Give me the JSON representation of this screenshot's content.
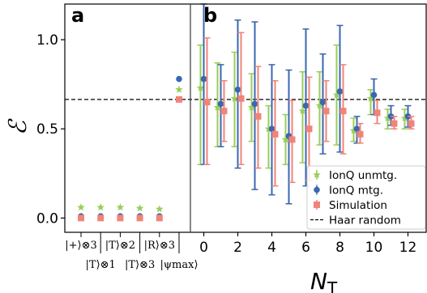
{
  "chart_data": {
    "type": "scatter",
    "ylabel": "ℰ",
    "xlabel": "N",
    "xlabel_sub": "T",
    "ylim": [
      -0.08,
      1.2
    ],
    "yticks": [
      0.0,
      0.5,
      1.0
    ],
    "ytick_labels": [
      "0.0",
      "0.5",
      "1.0"
    ],
    "panels": {
      "a": {
        "label": "a",
        "categories": [
          "|+⟩⊗3",
          "|T⟩⊗1",
          "|T⟩⊗2",
          "|T⟩⊗3",
          "|R⟩⊗3",
          "|ψmax⟩"
        ],
        "category_rows": [
          0,
          1,
          0,
          1,
          0,
          1
        ],
        "positions": [
          0,
          1,
          2,
          3,
          4,
          5
        ]
      },
      "b": {
        "label": "b",
        "xlim": [
          -0.8,
          12.3
        ],
        "xticks": [
          0,
          2,
          4,
          6,
          8,
          10,
          12
        ],
        "xtick_labels": [
          "0",
          "2",
          "4",
          "6",
          "8",
          "10",
          "12"
        ]
      }
    },
    "reference_line": {
      "name": "Haar random",
      "y": 0.665
    },
    "legend": {
      "position": "lower-right",
      "entries": [
        "IonQ unmtg.",
        "IonQ mtg.",
        "Simulation",
        "Haar random"
      ]
    },
    "series": [
      {
        "name": "IonQ unmtg.",
        "color": "#9acd5a",
        "marker": "star",
        "panel_a": [
          {
            "x": 0,
            "y": 0.06
          },
          {
            "x": 1,
            "y": 0.06
          },
          {
            "x": 2,
            "y": 0.06
          },
          {
            "x": 3,
            "y": 0.055
          },
          {
            "x": 4,
            "y": 0.05
          },
          {
            "x": 5,
            "y": 0.72
          }
        ],
        "panel_b": [
          {
            "x": 0,
            "y": 0.73,
            "lo": 0.3,
            "hi": 0.97
          },
          {
            "x": 1,
            "y": 0.62,
            "lo": 0.4,
            "hi": 0.87
          },
          {
            "x": 2,
            "y": 0.67,
            "lo": 0.4,
            "hi": 0.93
          },
          {
            "x": 3,
            "y": 0.62,
            "lo": 0.43,
            "hi": 0.81
          },
          {
            "x": 4,
            "y": 0.5,
            "lo": 0.28,
            "hi": 0.63
          },
          {
            "x": 5,
            "y": 0.44,
            "lo": 0.3,
            "hi": 0.58
          },
          {
            "x": 6,
            "y": 0.6,
            "lo": 0.31,
            "hi": 0.82
          },
          {
            "x": 7,
            "y": 0.63,
            "lo": 0.41,
            "hi": 0.82
          },
          {
            "x": 8,
            "y": 0.69,
            "lo": 0.41,
            "hi": 0.97
          },
          {
            "x": 9,
            "y": 0.49,
            "lo": 0.43,
            "hi": 0.56
          },
          {
            "x": 10,
            "y": 0.67,
            "lo": 0.58,
            "hi": 0.72
          },
          {
            "x": 11,
            "y": 0.56,
            "lo": 0.5,
            "hi": 0.61
          },
          {
            "x": 12,
            "y": 0.56,
            "lo": 0.5,
            "hi": 0.61
          }
        ]
      },
      {
        "name": "IonQ mtg.",
        "color": "#3a67b0",
        "marker": "circle",
        "panel_a": [
          {
            "x": 0,
            "y": 0.01
          },
          {
            "x": 1,
            "y": 0.01
          },
          {
            "x": 2,
            "y": 0.01
          },
          {
            "x": 3,
            "y": 0.01
          },
          {
            "x": 4,
            "y": 0.01
          },
          {
            "x": 5,
            "y": 0.78
          }
        ],
        "panel_b": [
          {
            "x": 0,
            "y": 0.78,
            "lo": 0.3,
            "hi": 1.2
          },
          {
            "x": 1,
            "y": 0.64,
            "lo": 0.4,
            "hi": 0.86
          },
          {
            "x": 2,
            "y": 0.72,
            "lo": 0.28,
            "hi": 1.11
          },
          {
            "x": 3,
            "y": 0.64,
            "lo": 0.16,
            "hi": 1.1
          },
          {
            "x": 4,
            "y": 0.5,
            "lo": 0.13,
            "hi": 0.86
          },
          {
            "x": 5,
            "y": 0.46,
            "lo": 0.08,
            "hi": 0.83
          },
          {
            "x": 6,
            "y": 0.63,
            "lo": 0.18,
            "hi": 1.06
          },
          {
            "x": 7,
            "y": 0.65,
            "lo": 0.36,
            "hi": 0.92
          },
          {
            "x": 8,
            "y": 0.71,
            "lo": 0.37,
            "hi": 1.08
          },
          {
            "x": 9,
            "y": 0.5,
            "lo": 0.42,
            "hi": 0.57
          },
          {
            "x": 10,
            "y": 0.69,
            "lo": 0.58,
            "hi": 0.78
          },
          {
            "x": 11,
            "y": 0.57,
            "lo": 0.52,
            "hi": 0.63
          },
          {
            "x": 12,
            "y": 0.57,
            "lo": 0.51,
            "hi": 0.63
          }
        ]
      },
      {
        "name": "Simulation",
        "color": "#f08478",
        "marker": "square",
        "panel_a": [
          {
            "x": 0,
            "y": 0.0
          },
          {
            "x": 1,
            "y": 0.0
          },
          {
            "x": 2,
            "y": 0.0
          },
          {
            "x": 3,
            "y": 0.0
          },
          {
            "x": 4,
            "y": 0.0
          },
          {
            "x": 5,
            "y": 0.665
          }
        ],
        "panel_b": [
          {
            "x": 0,
            "y": 0.65,
            "lo": 0.3,
            "hi": 1.01
          },
          {
            "x": 1,
            "y": 0.6,
            "lo": 0.43,
            "hi": 0.77
          },
          {
            "x": 2,
            "y": 0.67,
            "lo": 0.3,
            "hi": 1.04
          },
          {
            "x": 3,
            "y": 0.57,
            "lo": 0.28,
            "hi": 0.85
          },
          {
            "x": 4,
            "y": 0.47,
            "lo": 0.18,
            "hi": 0.77
          },
          {
            "x": 5,
            "y": 0.44,
            "lo": 0.2,
            "hi": 0.66
          },
          {
            "x": 6,
            "y": 0.5,
            "lo": 0.21,
            "hi": 0.79
          },
          {
            "x": 7,
            "y": 0.6,
            "lo": 0.43,
            "hi": 0.77
          },
          {
            "x": 8,
            "y": 0.6,
            "lo": 0.36,
            "hi": 0.86
          },
          {
            "x": 9,
            "y": 0.47,
            "lo": 0.42,
            "hi": 0.53
          },
          {
            "x": 10,
            "y": 0.59,
            "lo": 0.53,
            "hi": 0.66
          },
          {
            "x": 11,
            "y": 0.53,
            "lo": 0.5,
            "hi": 0.57
          },
          {
            "x": 12,
            "y": 0.53,
            "lo": 0.5,
            "hi": 0.57
          }
        ]
      }
    ]
  }
}
